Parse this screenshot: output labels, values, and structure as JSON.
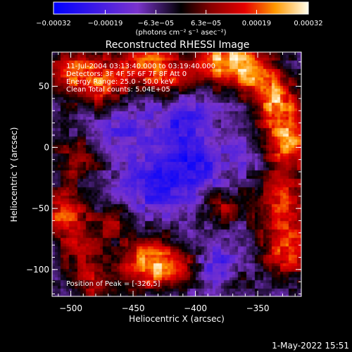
{
  "chart_data": {
    "type": "heatmap",
    "title": "Reconstructed RHESSI Image",
    "xlabel": "Heliocentric X (arcsec)",
    "ylabel": "Heliocentric Y (arcsec)",
    "xlim": [
      -515,
      -315
    ],
    "ylim": [
      -122,
      78
    ],
    "x_ticks": [
      -500,
      -450,
      -400,
      -350
    ],
    "y_ticks": [
      -100,
      -50,
      0,
      50
    ],
    "x_tick_labels": [
      "−500",
      "−450",
      "−400",
      "−350"
    ],
    "y_tick_labels": [
      "−100",
      "−50",
      "0",
      "50"
    ],
    "colorbar": {
      "range": [
        -0.00032,
        0.00032
      ],
      "tick_values": [
        -0.00032,
        -0.00019,
        -6.3e-05,
        6.3e-05,
        0.00019,
        0.00032
      ],
      "tick_labels": [
        "−0.00032",
        "−0.00019",
        "−6.3e−05",
        "6.3e−05",
        "0.00019",
        "0.00032"
      ],
      "unit_label": "(photons cm⁻² s⁻¹ asec⁻²)"
    },
    "annotations": [
      "11-Jul-2004 03:13:40.000 to 03:19:40.000",
      "Detectors: 3F 4F 5F 6F 7F 8F Att 0",
      "Energy Range: 25.0 - 50.0 keV",
      "Clean    Total counts: 5.04E+05",
      "Position of Peak = [-326,5]"
    ],
    "peak": [
      -326,
      5
    ],
    "hot_spots": [
      {
        "x": -497,
        "y": 62,
        "amp": 0.8,
        "r": 18
      },
      {
        "x": -470,
        "y": 50,
        "amp": 0.7,
        "r": 16
      },
      {
        "x": -440,
        "y": 70,
        "amp": 0.9,
        "r": 14
      },
      {
        "x": -420,
        "y": 58,
        "amp": 0.6,
        "r": 12
      },
      {
        "x": -390,
        "y": 70,
        "amp": 0.8,
        "r": 13
      },
      {
        "x": -365,
        "y": 70,
        "amp": 1.0,
        "r": 14
      },
      {
        "x": -345,
        "y": 55,
        "amp": 0.8,
        "r": 14
      },
      {
        "x": -326,
        "y": 5,
        "amp": 1.1,
        "r": 16
      },
      {
        "x": -333,
        "y": 35,
        "amp": 0.8,
        "r": 12
      },
      {
        "x": -330,
        "y": -45,
        "amp": 0.8,
        "r": 18
      },
      {
        "x": -325,
        "y": -85,
        "amp": 0.9,
        "r": 16
      },
      {
        "x": -505,
        "y": -55,
        "amp": 0.9,
        "r": 14
      },
      {
        "x": -495,
        "y": -10,
        "amp": 0.6,
        "r": 14
      },
      {
        "x": -490,
        "y": -85,
        "amp": 0.6,
        "r": 14
      },
      {
        "x": -440,
        "y": -95,
        "amp": 1.0,
        "r": 16
      },
      {
        "x": -415,
        "y": -98,
        "amp": 0.7,
        "r": 13
      },
      {
        "x": -380,
        "y": -50,
        "amp": 0.6,
        "r": 10
      },
      {
        "x": -465,
        "y": -60,
        "amp": 0.5,
        "r": 10
      },
      {
        "x": -480,
        "y": -115,
        "amp": 0.6,
        "r": 12
      },
      {
        "x": -370,
        "y": -110,
        "amp": 0.5,
        "r": 12
      }
    ],
    "cold_spots": [
      {
        "x": -430,
        "y": -30,
        "amp": -0.6,
        "r": 16
      },
      {
        "x": -400,
        "y": -15,
        "amp": -0.6,
        "r": 14
      },
      {
        "x": -410,
        "y": 20,
        "amp": -0.5,
        "r": 14
      },
      {
        "x": -380,
        "y": -100,
        "amp": -0.6,
        "r": 12
      },
      {
        "x": -460,
        "y": 20,
        "amp": -0.4,
        "r": 16
      },
      {
        "x": -355,
        "y": -5,
        "amp": -0.3,
        "r": 12
      }
    ]
  },
  "footer": {
    "date": "1-May-2022 15:51"
  }
}
